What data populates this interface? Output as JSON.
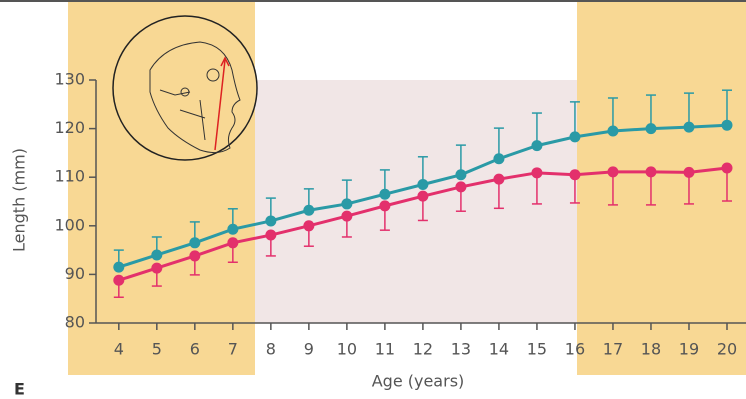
{
  "chart_data": {
    "type": "line",
    "panel_label": "E",
    "x_label": "Age (years)",
    "y_label": "Length (mm)",
    "x": [
      4,
      5,
      6,
      7,
      8,
      9,
      10,
      11,
      12,
      13,
      14,
      15,
      16,
      17,
      18,
      19,
      20
    ],
    "xlim": [
      3.4,
      20.5
    ],
    "xticks": [
      4,
      5,
      6,
      7,
      8,
      9,
      10,
      11,
      12,
      13,
      14,
      15,
      16,
      17,
      18,
      19,
      20
    ],
    "ylim": [
      80,
      130
    ],
    "yticks": [
      80,
      90,
      100,
      110,
      120,
      130
    ],
    "series": [
      {
        "color": "#2a9aa6",
        "error_bars": "upper",
        "values": [
          91.5,
          94,
          96.5,
          99.3,
          101,
          103.2,
          104.5,
          106.5,
          108.5,
          110.5,
          113.8,
          116.5,
          118.3,
          119.5,
          120,
          120.3,
          120.7
        ],
        "errors": [
          3.5,
          3.7,
          4.3,
          4.2,
          4.7,
          4.4,
          4.9,
          5,
          5.7,
          6.1,
          6.3,
          6.7,
          7.2,
          6.8,
          6.9,
          7,
          7.2
        ]
      },
      {
        "color": "#e3306c",
        "error_bars": "lower",
        "values": [
          88.8,
          91.3,
          93.8,
          96.5,
          98.1,
          100,
          102,
          104.1,
          106.1,
          108,
          109.6,
          110.9,
          110.5,
          111.1,
          111.1,
          111,
          111.9
        ],
        "errors": [
          3.5,
          3.7,
          3.9,
          4,
          4.3,
          4.2,
          4.3,
          5,
          5,
          5,
          6,
          6.4,
          5.8,
          6.8,
          6.8,
          6.5,
          6.8
        ]
      }
    ]
  }
}
